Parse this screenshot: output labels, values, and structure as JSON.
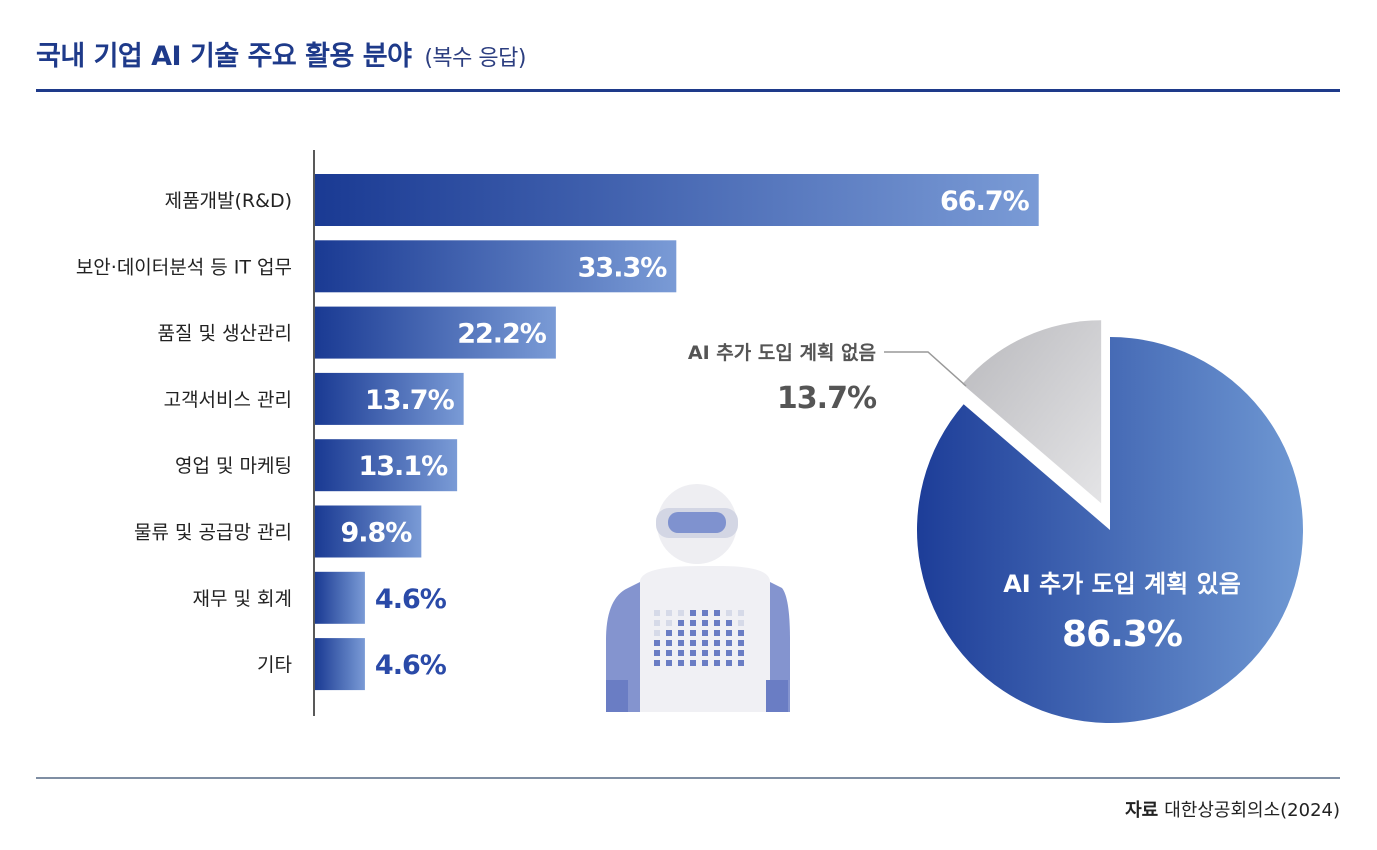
{
  "header": {
    "title": "국내 기업 AI 기술 주요 활용 분야",
    "subtitle": "(복수 응답)"
  },
  "footer": {
    "source_label": "자료",
    "source_text": "대한상공회의소(2024)"
  },
  "colors": {
    "bar_start": "#1a3a93",
    "bar_end": "#7a9bd6",
    "pie_main_start": "#1d3d98",
    "pie_main_end": "#6f98d3",
    "pie_minor": "#c9c9cc",
    "accent": "#1e3a8a"
  },
  "chart_data": [
    {
      "type": "bar",
      "orientation": "horizontal",
      "categories": [
        "제품개발(R&D)",
        "보안·데이터분석 등 IT 업무",
        "품질 및 생산관리",
        "고객서비스 관리",
        "영업 및 마케팅",
        "물류 및 공급망 관리",
        "재무 및 회계",
        "기타"
      ],
      "values": [
        66.7,
        33.3,
        22.2,
        13.7,
        13.1,
        9.8,
        4.6,
        4.6
      ],
      "value_labels": [
        "66.7%",
        "33.3%",
        "22.2%",
        "13.7%",
        "13.1%",
        "9.8%",
        "4.6%",
        "4.6%"
      ],
      "unit": "%",
      "xlim": [
        0,
        100
      ]
    },
    {
      "type": "pie",
      "slices": [
        {
          "label": "AI 추가 도입 계획 있음",
          "value": 86.3,
          "value_label": "86.3%"
        },
        {
          "label": "AI 추가 도입 계획 없음",
          "value": 13.7,
          "value_label": "13.7%"
        }
      ]
    }
  ],
  "illustration": {
    "icon": "robot-icon"
  }
}
